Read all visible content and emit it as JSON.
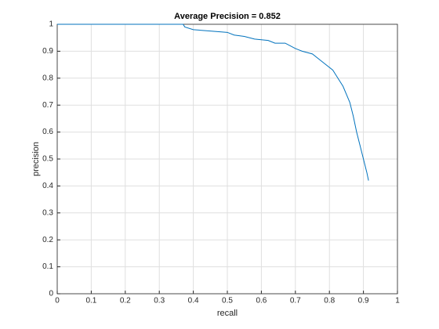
{
  "chart_data": {
    "type": "line",
    "title": "Average Precision = 0.852",
    "x_label": "recall",
    "y_label": "precision",
    "x": [
      0,
      0.1,
      0.2,
      0.3,
      0.37,
      0.375,
      0.4,
      0.45,
      0.5,
      0.52,
      0.55,
      0.58,
      0.62,
      0.64,
      0.67,
      0.7,
      0.72,
      0.75,
      0.77,
      0.79,
      0.81,
      0.82,
      0.83,
      0.84,
      0.85,
      0.86,
      0.87,
      0.88,
      0.89,
      0.9,
      0.91,
      0.915
    ],
    "series": [
      {
        "color": "#0072bd",
        "values": [
          1,
          1,
          1,
          1,
          1,
          0.99,
          0.98,
          0.975,
          0.97,
          0.96,
          0.955,
          0.945,
          0.94,
          0.93,
          0.93,
          0.91,
          0.9,
          0.89,
          0.87,
          0.85,
          0.83,
          0.81,
          0.79,
          0.77,
          0.74,
          0.71,
          0.66,
          0.6,
          0.55,
          0.5,
          0.45,
          0.42
        ]
      }
    ],
    "xlim": [
      0,
      1
    ],
    "ylim": [
      0,
      1
    ],
    "xticks": [
      0,
      0.1,
      0.2,
      0.3,
      0.4,
      0.5,
      0.6,
      0.7,
      0.8,
      0.9,
      1
    ],
    "yticks": [
      0,
      0.1,
      0.2,
      0.3,
      0.4,
      0.5,
      0.6,
      0.7,
      0.8,
      0.9,
      1
    ],
    "grid": true
  }
}
